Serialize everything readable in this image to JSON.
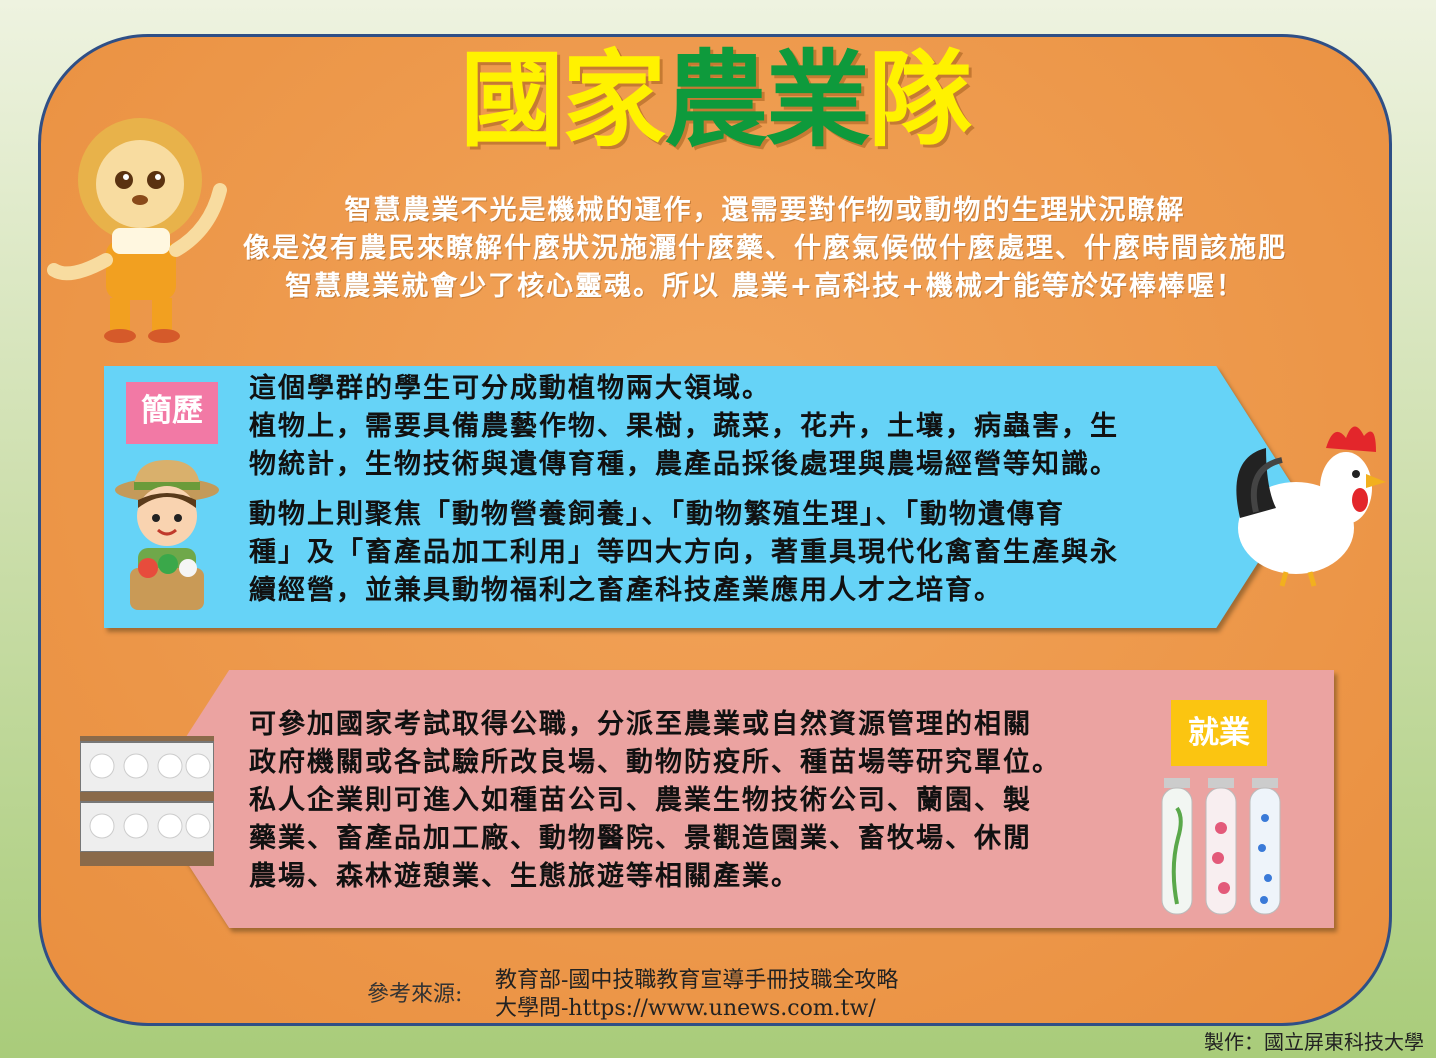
{
  "title": {
    "part1": "國家",
    "part2": "農業",
    "part3": "隊"
  },
  "intro": [
    "智慧農業不光是機械的運作，還需要對作物或動物的生理狀況瞭解",
    "像是沒有農民來瞭解什麼狀況施灑什麼藥、什麼氣候做什麼處理、什麼時間該施肥",
    "智慧農業就會少了核心靈魂。所以 農業+高科技+機械才能等於好棒棒喔！"
  ],
  "profile": {
    "badge": "簡歷",
    "lines": [
      "這個學群的學生可分成動植物兩大領域。",
      "植物上，需要具備農藝作物、果樹，蔬菜，花卉，土壤，病蟲害，生",
      "物統計，生物技術與遺傳育種，農產品採後處理與農場經營等知識。",
      "動物上則聚焦「動物營養飼養」、「動物繁殖生理」、「動物遺傳育",
      "種」及「畜產品加工利用」等四大方向，著重具現代化禽畜生產與永",
      "續經營，並兼具動物福利之畜產科技產業應用人才之培育。"
    ]
  },
  "career": {
    "badge": "就業",
    "lines": [
      "可參加國家考試取得公職，分派至農業或自然資源管理的相關",
      "政府機關或各試驗所改良場、動物防疫所、種苗場等研究單位。",
      "私人企業則可進入如種苗公司、農業生物技術公司、蘭園、製",
      "藥業、畜產品加工廠、動物醫院、景觀造園業、畜牧場、休閒",
      "農場、森林遊憩業、生態旅遊等相關產業。"
    ]
  },
  "reference": {
    "label": "參考來源:",
    "sources": [
      "教育部-國中技職教育宣導手冊技職全攻略",
      "大學問-https://www.unews.com.tw/"
    ]
  },
  "credit": "製作：國立屏東科技大學",
  "icons": [
    "lion-mascot-icon",
    "farmer-icon",
    "rooster-icon",
    "chicken-cages-icon",
    "test-tubes-icon"
  ]
}
